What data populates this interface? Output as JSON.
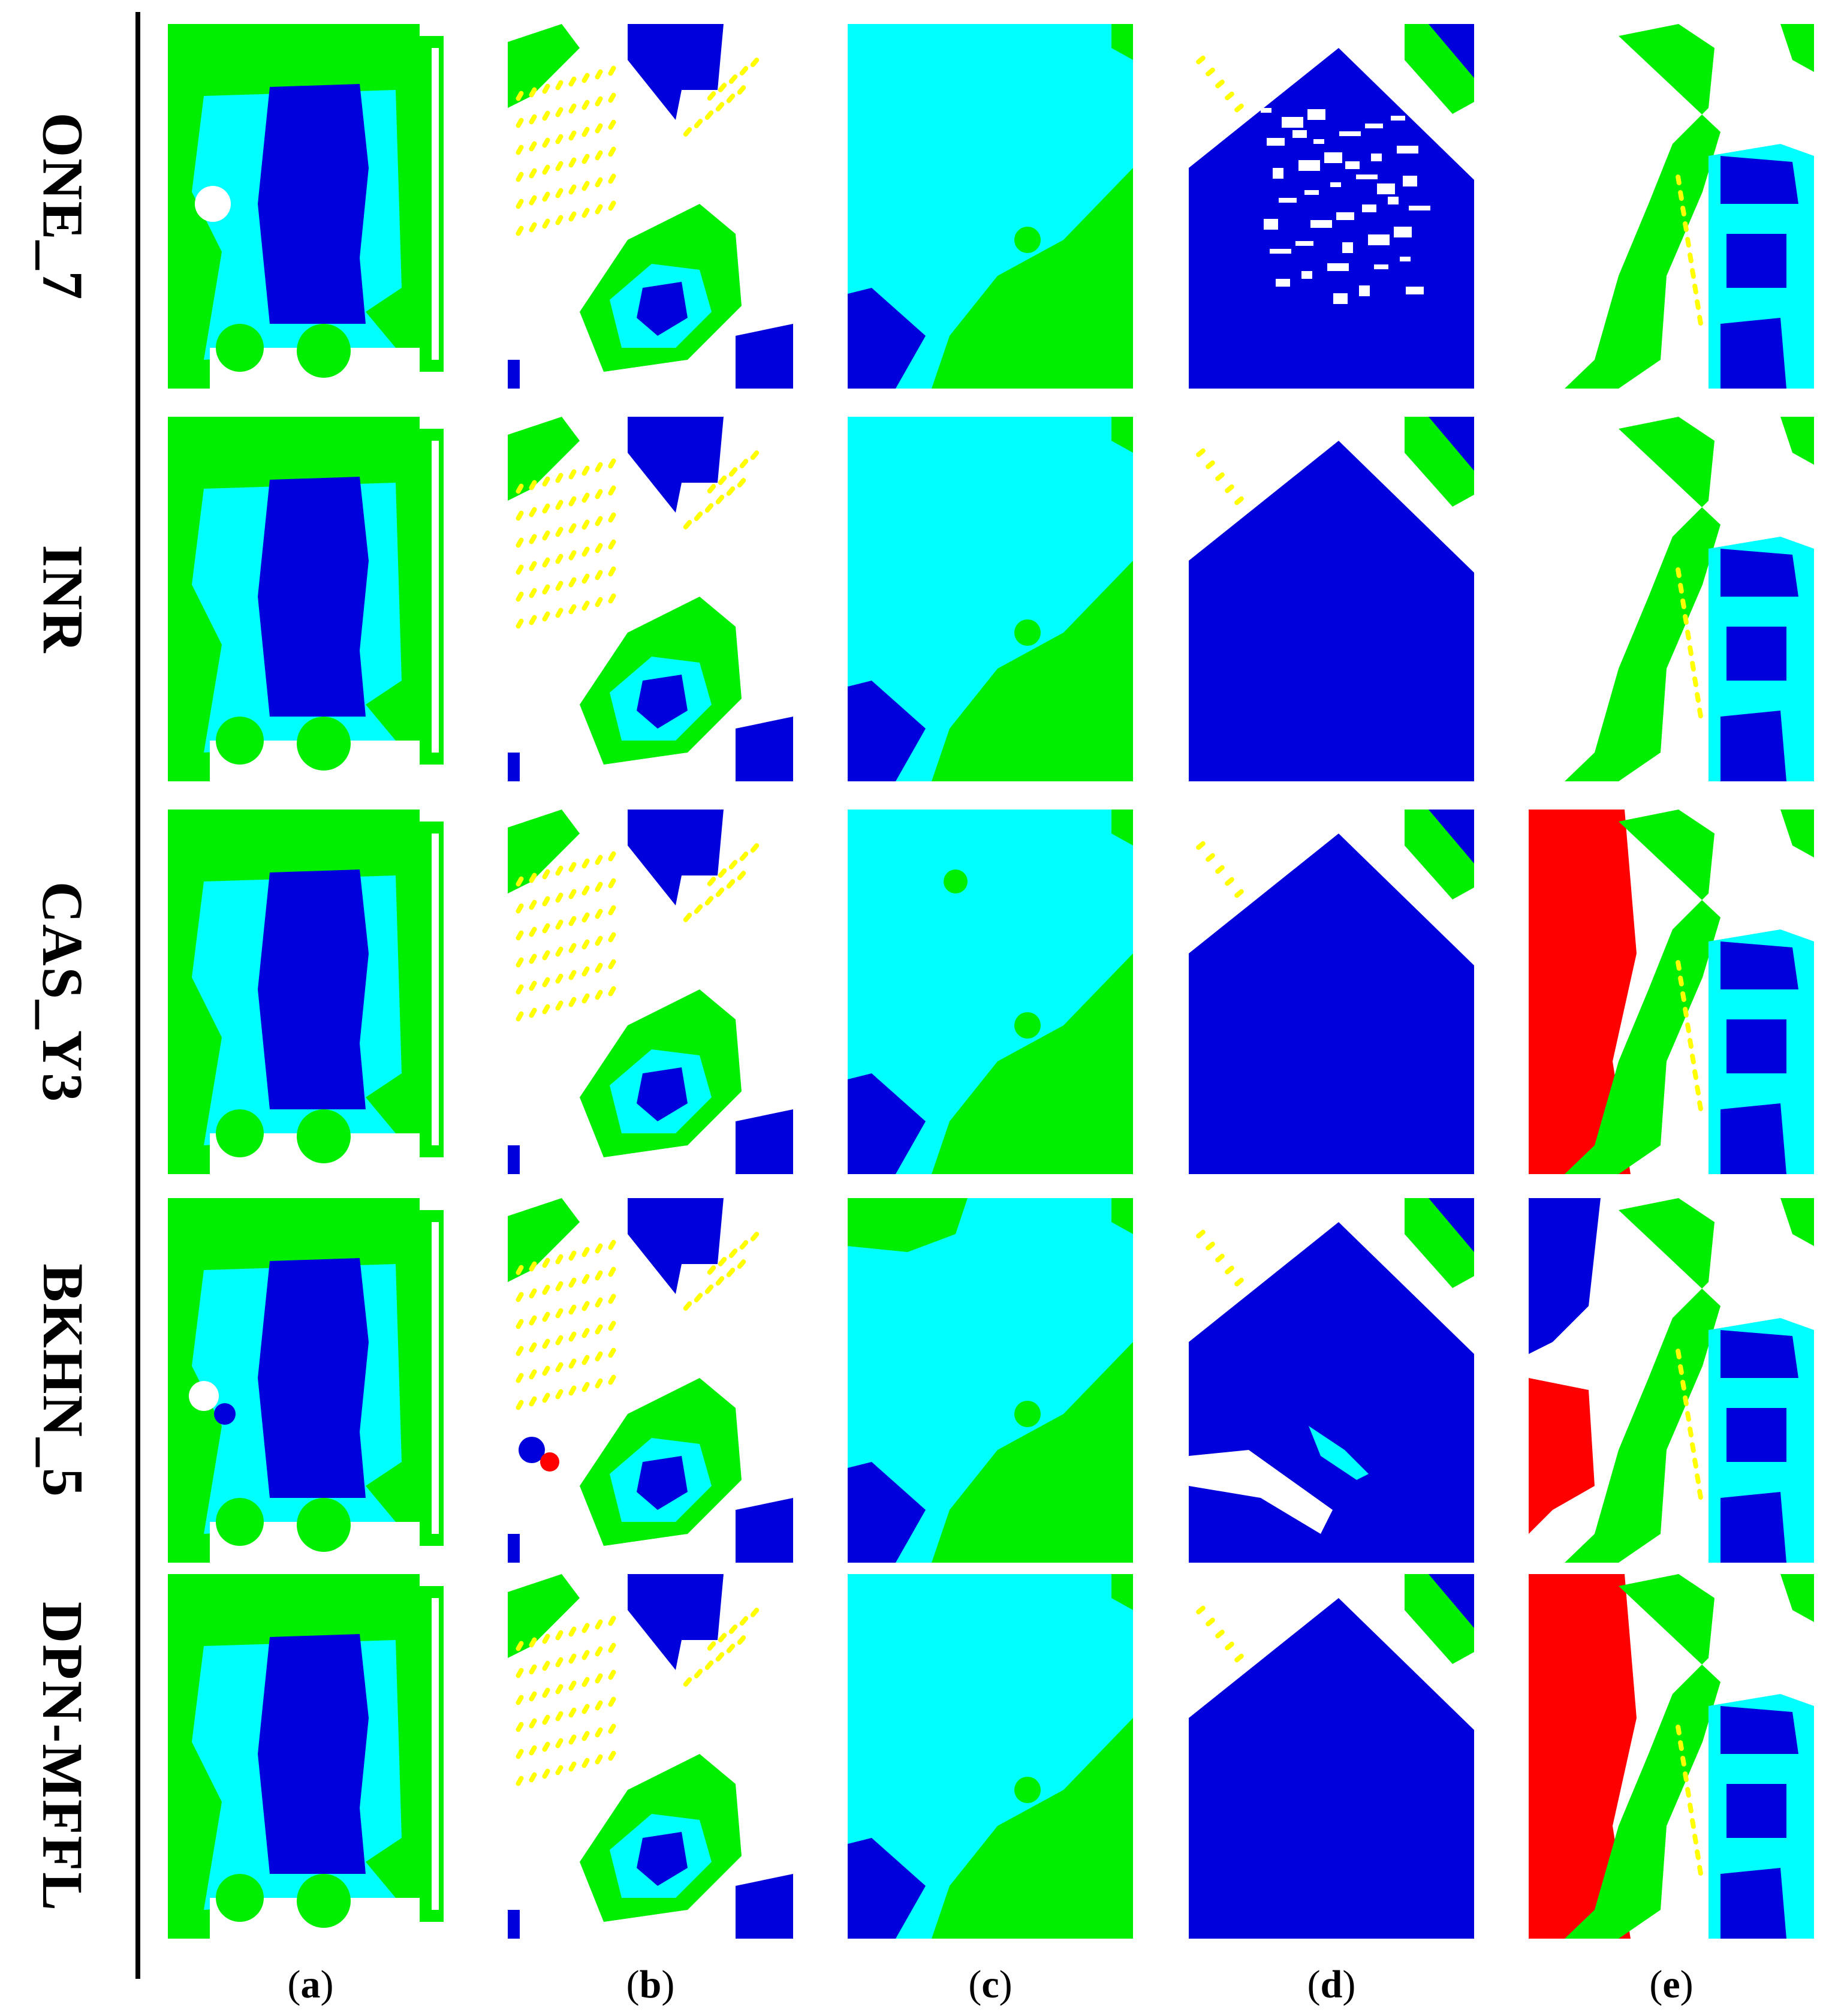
{
  "row_labels": [
    "ONE_7",
    "INR",
    "CAS_Y3",
    "BKHN_5",
    "DPN-MFFL"
  ],
  "column_labels": [
    "a",
    "b",
    "c",
    "d",
    "e"
  ],
  "class_colors": {
    "impervious_surface": "#ffffff",
    "building": "#0000dd",
    "low_vegetation": "#00ffff",
    "tree": "#00ee00",
    "car": "#ffff00",
    "clutter": "#ff0000"
  }
}
